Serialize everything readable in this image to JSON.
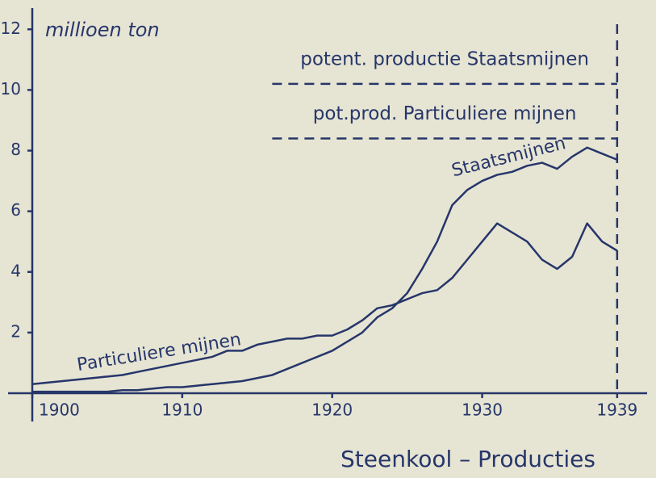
{
  "chart_data": {
    "type": "line",
    "ylabel": "millioen ton",
    "title": "Steenkool – Producties",
    "x": [
      1900,
      1901,
      1902,
      1903,
      1904,
      1905,
      1906,
      1907,
      1908,
      1909,
      1910,
      1911,
      1912,
      1913,
      1914,
      1915,
      1916,
      1917,
      1918,
      1919,
      1920,
      1921,
      1922,
      1923,
      1924,
      1925,
      1926,
      1927,
      1928,
      1929,
      1930,
      1931,
      1932,
      1933,
      1934,
      1935,
      1936,
      1937,
      1938,
      1939
    ],
    "series": [
      {
        "name": "Particuliere mijnen",
        "color": "#26366a",
        "values": [
          0.3,
          0.35,
          0.4,
          0.45,
          0.5,
          0.55,
          0.6,
          0.7,
          0.8,
          0.9,
          1.0,
          1.1,
          1.2,
          1.4,
          1.4,
          1.6,
          1.7,
          1.8,
          1.8,
          1.9,
          1.9,
          2.1,
          2.4,
          2.8,
          2.9,
          3.1,
          3.3,
          3.4,
          3.8,
          4.4,
          5.0,
          5.6,
          5.3,
          5.0,
          4.4,
          4.1,
          4.5,
          5.6,
          5.0,
          4.7
        ]
      },
      {
        "name": "Staatsmijnen",
        "color": "#26366a",
        "values": [
          0.05,
          0.05,
          0.05,
          0.05,
          0.05,
          0.05,
          0.1,
          0.1,
          0.15,
          0.2,
          0.2,
          0.25,
          0.3,
          0.35,
          0.4,
          0.5,
          0.6,
          0.8,
          1.0,
          1.2,
          1.4,
          1.7,
          2.0,
          2.5,
          2.8,
          3.3,
          4.1,
          5.0,
          6.2,
          6.7,
          7.0,
          7.2,
          7.3,
          7.5,
          7.6,
          7.4,
          7.8,
          8.1,
          7.9,
          7.7
        ]
      }
    ],
    "reference_lines": [
      {
        "label": "potent. productie Staatsmijnen",
        "value": 10.2,
        "x": [
          1916,
          1939
        ]
      },
      {
        "label": "pot.prod. Particuliere mijnen",
        "value": 8.4,
        "x": [
          1916,
          1939
        ]
      }
    ],
    "vline": 1939,
    "xlim": [
      1900,
      1941
    ],
    "ylim": [
      0,
      12.7
    ],
    "xticks": [
      1900,
      1910,
      1920,
      1930,
      1939
    ],
    "yticks": [
      2,
      4,
      6,
      8,
      10,
      12
    ]
  }
}
